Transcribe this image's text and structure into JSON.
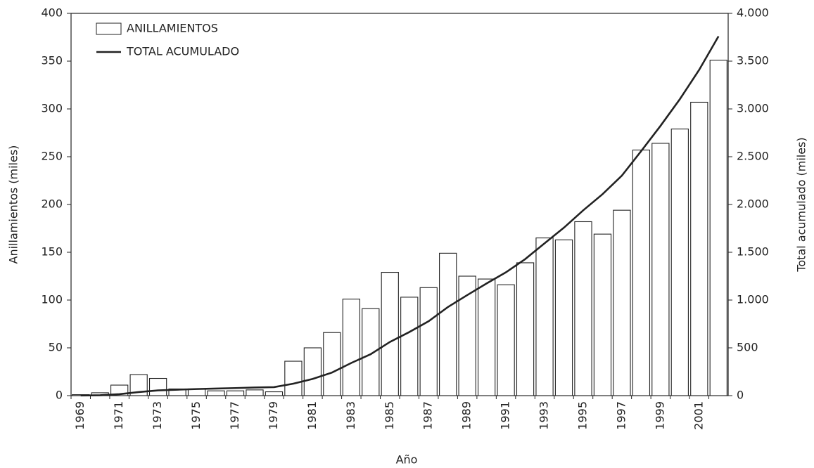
{
  "chart_data": {
    "type": "bar",
    "x_label": "Año",
    "y_label": "Anillamientos (miles)",
    "y2_label": "Total acumulado (miles)",
    "categories": [
      "1969",
      null,
      "1971",
      null,
      "1973",
      null,
      "1975",
      null,
      "1977",
      null,
      "1979",
      null,
      "1981",
      null,
      "1983",
      null,
      "1985",
      null,
      "1987",
      null,
      "1989",
      null,
      "1991",
      null,
      "1993",
      null,
      "1995",
      null,
      "1997",
      null,
      "1999",
      null,
      "2001",
      null
    ],
    "series": [
      {
        "name": "ANILLAMIENTOS",
        "type": "bar",
        "color": "#ffffff",
        "stroke": "#222222",
        "values": [
          1,
          3,
          11,
          22,
          18,
          7,
          7,
          5,
          5,
          6,
          4,
          36,
          50,
          66,
          101,
          91,
          129,
          103,
          113,
          149,
          125,
          122,
          116,
          139,
          165,
          163,
          182,
          169,
          194,
          257,
          264,
          279,
          307,
          351
        ]
      },
      {
        "name": "TOTAL ACUMULADO",
        "type": "line",
        "axis": "y2",
        "color": "#222222",
        "values": [
          1,
          4,
          15,
          37,
          55,
          62,
          69,
          74,
          79,
          85,
          89,
          125,
          175,
          241,
          342,
          433,
          562,
          665,
          778,
          927,
          1052,
          1174,
          1290,
          1429,
          1594,
          1757,
          1939,
          2108,
          2302,
          2559,
          2823,
          3102,
          3409,
          3760
        ]
      }
    ],
    "ylim": [
      0,
      400
    ],
    "yticks": [
      0,
      50,
      100,
      150,
      200,
      250,
      300,
      350,
      400
    ],
    "y2lim": [
      0,
      4000
    ],
    "y2ticks": [
      0,
      500,
      {
        "value": 1000,
        "label": "1.000"
      },
      {
        "value": 1500,
        "label": "1.500"
      },
      {
        "value": 2000,
        "label": "2.000"
      },
      {
        "value": 2500,
        "label": "2.500"
      },
      {
        "value": 3000,
        "label": "3.000"
      },
      {
        "value": 3500,
        "label": "3.500"
      },
      {
        "value": 4000,
        "label": "4.000"
      }
    ],
    "legend": "upper-left",
    "grid": false
  }
}
